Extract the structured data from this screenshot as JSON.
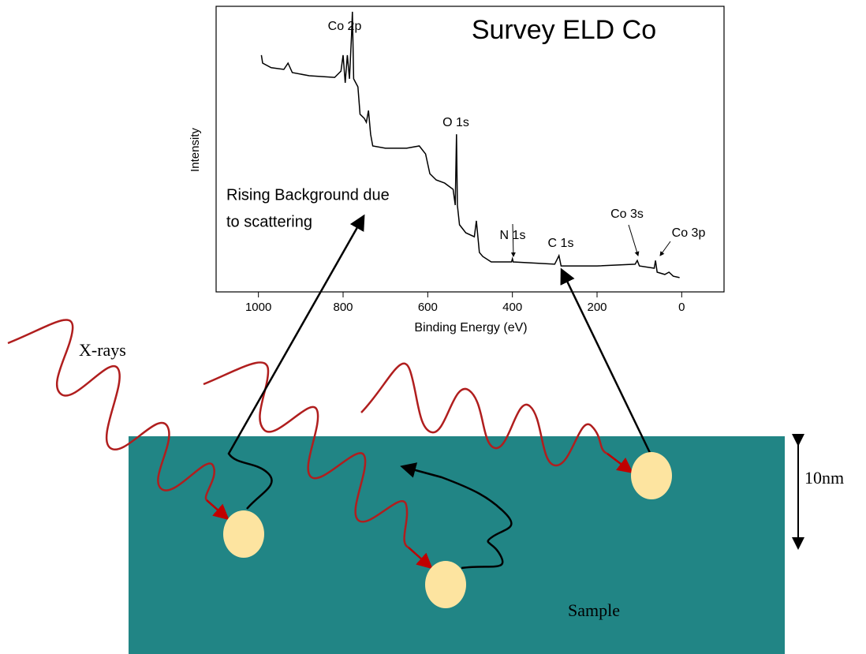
{
  "chart_data": {
    "type": "line",
    "title": "Survey ELD Co",
    "x_label": "Binding Energy (eV)",
    "y_label": "Intensity",
    "xlim": [
      1100,
      -100
    ],
    "xticks": [
      1000,
      800,
      600,
      400,
      200,
      0
    ],
    "ylim": [
      0,
      100
    ],
    "color": "#000000",
    "x": [
      993,
      990,
      970,
      940,
      930,
      920,
      880,
      820,
      805,
      800,
      795,
      790,
      785,
      780,
      778,
      775,
      765,
      760,
      750,
      745,
      740,
      735,
      730,
      700,
      650,
      620,
      605,
      595,
      580,
      560,
      540,
      535,
      532,
      530,
      525,
      510,
      490,
      485,
      478,
      470,
      450,
      402,
      400,
      398,
      300,
      290,
      285,
      200,
      110,
      105,
      100,
      65,
      62,
      58,
      40,
      30,
      20,
      5
    ],
    "values": [
      82.9,
      80.1,
      78.5,
      77.9,
      80.1,
      76.8,
      75.7,
      75.1,
      77.3,
      82.9,
      73.2,
      82.9,
      74.6,
      89.8,
      98.1,
      74.6,
      71.8,
      62.2,
      60.8,
      59.4,
      63.5,
      55.2,
      51.1,
      50.3,
      50.3,
      51.1,
      48.3,
      41.4,
      39.2,
      38.1,
      35.9,
      30.4,
      55.2,
      30.4,
      23.5,
      20.7,
      19.3,
      24.9,
      13.8,
      12.4,
      10.5,
      10.5,
      11.6,
      10.5,
      9.7,
      12.7,
      9.1,
      9.1,
      9.7,
      11.0,
      9.1,
      8.3,
      11.0,
      6.9,
      6.1,
      6.9,
      5.5,
      5.0
    ],
    "annotations": [
      "Co 2p",
      "O 1s",
      "N 1s",
      "C 1s",
      "Co 3s",
      "Co 3p"
    ]
  },
  "diagram": {
    "background_note": [
      "Rising Background due",
      "to scattering"
    ],
    "source_label": "X-rays",
    "sample_label": "Sample",
    "depth_label": "10nm"
  }
}
